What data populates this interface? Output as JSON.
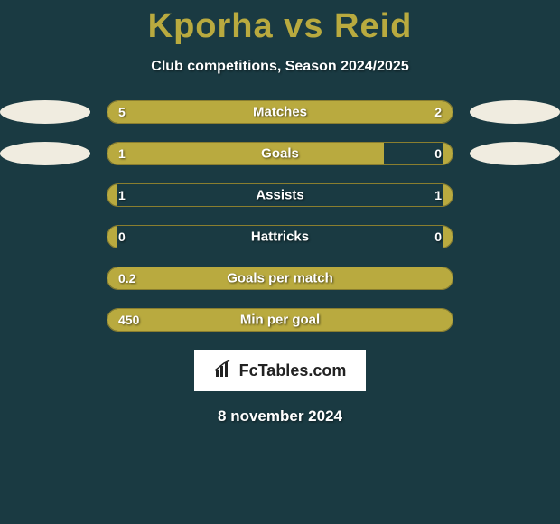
{
  "title": "Kporha vs Reid",
  "subtitle": "Club competitions, Season 2024/2025",
  "date": "8 november 2024",
  "logo_text_1": "FcTables",
  "logo_text_2": ".com",
  "colors": {
    "background": "#1a3a42",
    "accent": "#b9aa3f",
    "ellipse": "#f0ece0",
    "text": "#ffffff",
    "logo_bg": "#ffffff"
  },
  "bars": [
    {
      "label": "Matches",
      "left_val": "5",
      "right_val": "2",
      "left_pct": 69,
      "right_pct": 31,
      "show_ellipse": true
    },
    {
      "label": "Goals",
      "left_val": "1",
      "right_val": "0",
      "left_pct": 80,
      "right_pct": 3,
      "show_ellipse": true
    },
    {
      "label": "Assists",
      "left_val": "1",
      "right_val": "1",
      "left_pct": 3,
      "right_pct": 3,
      "show_ellipse": false
    },
    {
      "label": "Hattricks",
      "left_val": "0",
      "right_val": "0",
      "left_pct": 3,
      "right_pct": 3,
      "show_ellipse": false
    },
    {
      "label": "Goals per match",
      "left_val": "0.2",
      "right_val": "",
      "left_pct": 100,
      "right_pct": 0,
      "show_ellipse": false
    },
    {
      "label": "Min per goal",
      "left_val": "450",
      "right_val": "",
      "left_pct": 100,
      "right_pct": 0,
      "show_ellipse": false
    }
  ]
}
